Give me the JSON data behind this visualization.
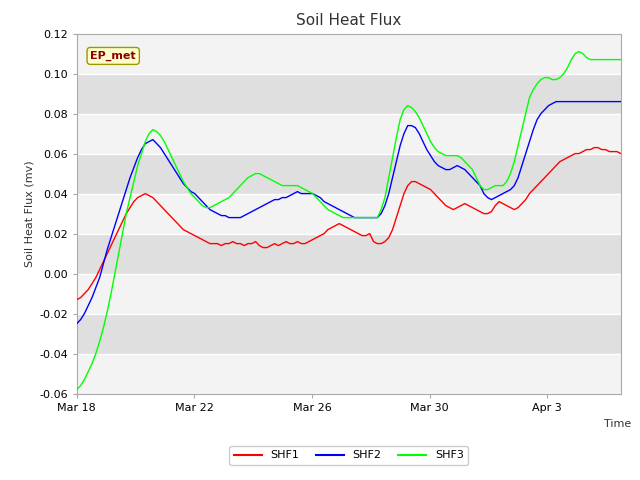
{
  "title": "Soil Heat Flux",
  "ylabel": "Soil Heat Flux (mv)",
  "xlabel": "Time",
  "annotation": "EP_met",
  "ylim": [
    -0.06,
    0.12
  ],
  "fig_bg": "#f5f5f5",
  "plot_bg": "#e8e8e8",
  "legend": [
    "SHF1",
    "SHF2",
    "SHF3"
  ],
  "legend_colors": [
    "red",
    "blue",
    "lime"
  ],
  "x_ticks": [
    "Mar 18",
    "Mar 22",
    "Mar 26",
    "Mar 30",
    "Apr 3"
  ],
  "xtick_positions": [
    0,
    4,
    8,
    12,
    16
  ],
  "xlim": [
    0,
    18.5
  ],
  "shf1": [
    -0.013,
    -0.012,
    -0.01,
    -0.008,
    -0.005,
    -0.002,
    0.002,
    0.006,
    0.01,
    0.014,
    0.018,
    0.022,
    0.026,
    0.03,
    0.033,
    0.036,
    0.038,
    0.039,
    0.04,
    0.039,
    0.038,
    0.036,
    0.034,
    0.032,
    0.03,
    0.028,
    0.026,
    0.024,
    0.022,
    0.021,
    0.02,
    0.019,
    0.018,
    0.017,
    0.016,
    0.015,
    0.015,
    0.015,
    0.014,
    0.015,
    0.015,
    0.016,
    0.015,
    0.015,
    0.014,
    0.015,
    0.015,
    0.016,
    0.014,
    0.013,
    0.013,
    0.014,
    0.015,
    0.014,
    0.015,
    0.016,
    0.015,
    0.015,
    0.016,
    0.015,
    0.015,
    0.016,
    0.017,
    0.018,
    0.019,
    0.02,
    0.022,
    0.023,
    0.024,
    0.025,
    0.024,
    0.023,
    0.022,
    0.021,
    0.02,
    0.019,
    0.019,
    0.02,
    0.016,
    0.015,
    0.015,
    0.016,
    0.018,
    0.022,
    0.028,
    0.034,
    0.04,
    0.044,
    0.046,
    0.046,
    0.045,
    0.044,
    0.043,
    0.042,
    0.04,
    0.038,
    0.036,
    0.034,
    0.033,
    0.032,
    0.033,
    0.034,
    0.035,
    0.034,
    0.033,
    0.032,
    0.031,
    0.03,
    0.03,
    0.031,
    0.034,
    0.036,
    0.035,
    0.034,
    0.033,
    0.032,
    0.033,
    0.035,
    0.037,
    0.04,
    0.042,
    0.044,
    0.046,
    0.048,
    0.05,
    0.052,
    0.054,
    0.056,
    0.057,
    0.058,
    0.059,
    0.06,
    0.06,
    0.061,
    0.062,
    0.062,
    0.063,
    0.063,
    0.062,
    0.062,
    0.061,
    0.061,
    0.061,
    0.06
  ],
  "shf2": [
    -0.025,
    -0.023,
    -0.02,
    -0.016,
    -0.012,
    -0.007,
    -0.002,
    0.005,
    0.012,
    0.018,
    0.024,
    0.03,
    0.036,
    0.042,
    0.048,
    0.053,
    0.058,
    0.062,
    0.065,
    0.066,
    0.067,
    0.065,
    0.063,
    0.06,
    0.057,
    0.054,
    0.051,
    0.048,
    0.045,
    0.043,
    0.041,
    0.04,
    0.038,
    0.036,
    0.034,
    0.032,
    0.031,
    0.03,
    0.029,
    0.029,
    0.028,
    0.028,
    0.028,
    0.028,
    0.029,
    0.03,
    0.031,
    0.032,
    0.033,
    0.034,
    0.035,
    0.036,
    0.037,
    0.037,
    0.038,
    0.038,
    0.039,
    0.04,
    0.041,
    0.04,
    0.04,
    0.04,
    0.04,
    0.039,
    0.038,
    0.036,
    0.035,
    0.034,
    0.033,
    0.032,
    0.031,
    0.03,
    0.029,
    0.028,
    0.028,
    0.028,
    0.028,
    0.028,
    0.028,
    0.028,
    0.03,
    0.034,
    0.04,
    0.048,
    0.056,
    0.064,
    0.07,
    0.074,
    0.074,
    0.073,
    0.07,
    0.066,
    0.062,
    0.059,
    0.056,
    0.054,
    0.053,
    0.052,
    0.052,
    0.053,
    0.054,
    0.053,
    0.052,
    0.05,
    0.048,
    0.046,
    0.044,
    0.04,
    0.038,
    0.037,
    0.038,
    0.039,
    0.04,
    0.041,
    0.042,
    0.044,
    0.048,
    0.054,
    0.06,
    0.066,
    0.072,
    0.077,
    0.08,
    0.082,
    0.084,
    0.085,
    0.086,
    0.086,
    0.086,
    0.086,
    0.086,
    0.086,
    0.086,
    0.086,
    0.086,
    0.086,
    0.086,
    0.086,
    0.086,
    0.086,
    0.086,
    0.086,
    0.086,
    0.086
  ],
  "shf3": [
    -0.058,
    -0.056,
    -0.053,
    -0.049,
    -0.045,
    -0.04,
    -0.034,
    -0.027,
    -0.019,
    -0.01,
    0.0,
    0.01,
    0.02,
    0.03,
    0.038,
    0.046,
    0.054,
    0.06,
    0.066,
    0.07,
    0.072,
    0.071,
    0.069,
    0.066,
    0.062,
    0.058,
    0.054,
    0.05,
    0.046,
    0.043,
    0.04,
    0.038,
    0.036,
    0.034,
    0.033,
    0.033,
    0.034,
    0.035,
    0.036,
    0.037,
    0.038,
    0.04,
    0.042,
    0.044,
    0.046,
    0.048,
    0.049,
    0.05,
    0.05,
    0.049,
    0.048,
    0.047,
    0.046,
    0.045,
    0.044,
    0.044,
    0.044,
    0.044,
    0.044,
    0.043,
    0.042,
    0.041,
    0.04,
    0.038,
    0.036,
    0.034,
    0.032,
    0.031,
    0.03,
    0.029,
    0.028,
    0.028,
    0.028,
    0.028,
    0.028,
    0.028,
    0.028,
    0.028,
    0.028,
    0.028,
    0.032,
    0.038,
    0.048,
    0.058,
    0.068,
    0.077,
    0.082,
    0.084,
    0.083,
    0.081,
    0.078,
    0.074,
    0.07,
    0.066,
    0.063,
    0.061,
    0.06,
    0.059,
    0.059,
    0.059,
    0.059,
    0.058,
    0.056,
    0.054,
    0.052,
    0.048,
    0.044,
    0.042,
    0.042,
    0.043,
    0.044,
    0.044,
    0.044,
    0.046,
    0.05,
    0.056,
    0.064,
    0.072,
    0.08,
    0.088,
    0.092,
    0.095,
    0.097,
    0.098,
    0.098,
    0.097,
    0.097,
    0.098,
    0.1,
    0.103,
    0.107,
    0.11,
    0.111,
    0.11,
    0.108,
    0.107,
    0.107,
    0.107,
    0.107,
    0.107,
    0.107,
    0.107,
    0.107,
    0.107
  ]
}
